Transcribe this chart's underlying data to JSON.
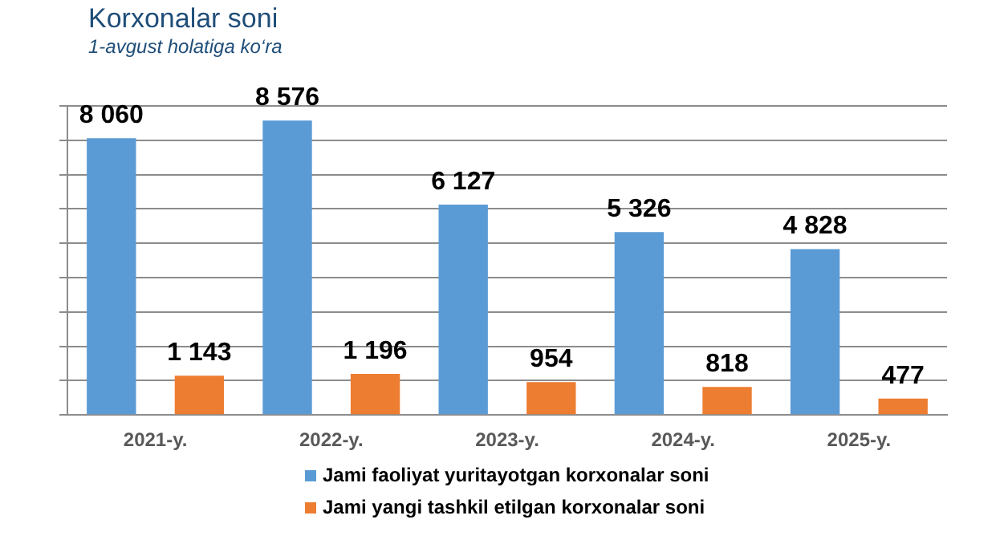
{
  "chart_data": {
    "type": "bar",
    "title": "Korxonalar soni",
    "subtitle": "1-avgust holatiga ko‘ra",
    "categories": [
      "2021-y.",
      "2022-y.",
      "2023-y.",
      "2024-y.",
      "2025-y."
    ],
    "series": [
      {
        "name": "Jami faoliyat yuritayotgan korxonalar soni",
        "color": "#5b9bd5",
        "values": [
          8060,
          8576,
          6127,
          5326,
          4828
        ],
        "value_labels": [
          "8 060",
          "8 576",
          "6 127",
          "5 326",
          "4 828"
        ]
      },
      {
        "name": "Jami yangi tashkil etilgan korxonalar soni",
        "color": "#ed7d31",
        "values": [
          1143,
          1196,
          954,
          818,
          477
        ],
        "value_labels": [
          "1 143",
          "1 196",
          "954",
          "818",
          "477"
        ]
      }
    ],
    "ylim": [
      0,
      9000
    ],
    "yticks": [
      {
        "value": 0,
        "label": null
      },
      {
        "value": 1000,
        "label": null
      },
      {
        "value": 2000,
        "label": null
      },
      {
        "value": 3000,
        "label": null
      },
      {
        "value": 4000,
        "label": null
      },
      {
        "value": 5000,
        "label": null
      },
      {
        "value": 6000,
        "label": null
      },
      {
        "value": 7000,
        "label": null
      },
      {
        "value": 8000,
        "label": null
      },
      {
        "value": 9000,
        "label": null
      }
    ],
    "grid": "y",
    "legend": "bottom",
    "tick_labels": "x"
  }
}
